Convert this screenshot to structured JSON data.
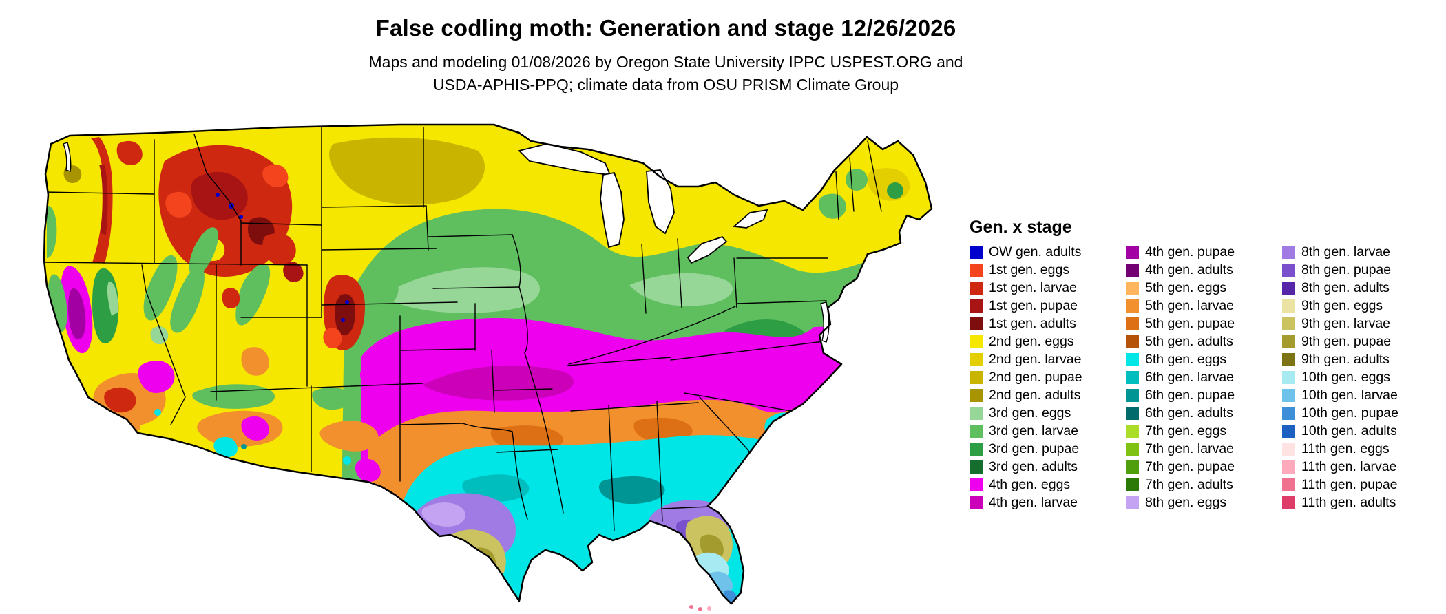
{
  "header": {
    "title": "False codling moth: Generation and stage 12/26/2026",
    "subtitle_line1": "Maps and modeling 01/08/2026 by Oregon State University IPPC USPEST.ORG and",
    "subtitle_line2": "USDA-APHIS-PPQ; climate data from OSU PRISM Climate Group"
  },
  "map": {
    "description": "Continental United States map colored by false codling moth generation and life stage",
    "outline_color": "#000000",
    "lake_color": "#FFFFFF"
  },
  "legend": {
    "title": "Gen. x stage",
    "columns": [
      [
        {
          "label": "OW gen. adults",
          "color": "#0000CD"
        },
        {
          "label": "1st gen. eggs",
          "color": "#F3441E"
        },
        {
          "label": "1st gen. larvae",
          "color": "#CF2810"
        },
        {
          "label": "1st gen. pupae",
          "color": "#A81414"
        },
        {
          "label": "1st gen. adults",
          "color": "#7E0E0E"
        },
        {
          "label": "2nd gen. eggs",
          "color": "#F5E700"
        },
        {
          "label": "2nd gen. larvae",
          "color": "#E3CF00"
        },
        {
          "label": "2nd gen. pupae",
          "color": "#C9B400"
        },
        {
          "label": "2nd gen. adults",
          "color": "#A89400"
        },
        {
          "label": "3rd gen. eggs",
          "color": "#96D696"
        },
        {
          "label": "3rd gen. larvae",
          "color": "#5FBF5F"
        },
        {
          "label": "3rd gen. pupae",
          "color": "#2E9E44"
        },
        {
          "label": "3rd gen. adults",
          "color": "#156E2E"
        },
        {
          "label": "4th gen. eggs",
          "color": "#EE00EE"
        },
        {
          "label": "4th gen. larvae",
          "color": "#CC00B8"
        }
      ],
      [
        {
          "label": "4th gen. pupae",
          "color": "#A300A3"
        },
        {
          "label": "4th gen. adults",
          "color": "#730073"
        },
        {
          "label": "5th gen. eggs",
          "color": "#FFB45E"
        },
        {
          "label": "5th gen. larvae",
          "color": "#F3902E"
        },
        {
          "label": "5th gen. pupae",
          "color": "#DD7014"
        },
        {
          "label": "5th gen. adults",
          "color": "#B55409"
        },
        {
          "label": "6th gen. eggs",
          "color": "#00E5E5"
        },
        {
          "label": "6th gen. larvae",
          "color": "#00BEBE"
        },
        {
          "label": "6th gen. pupae",
          "color": "#009595"
        },
        {
          "label": "6th gen. adults",
          "color": "#006B6B"
        },
        {
          "label": "7th gen. eggs",
          "color": "#AADC28"
        },
        {
          "label": "7th gen. larvae",
          "color": "#7FC213"
        },
        {
          "label": "7th gen. pupae",
          "color": "#4F9E0C"
        },
        {
          "label": "7th gen. adults",
          "color": "#2B7A08"
        },
        {
          "label": "8th gen. eggs",
          "color": "#C3A3F2"
        }
      ],
      [
        {
          "label": "8th gen. larvae",
          "color": "#9F7BE3"
        },
        {
          "label": "8th gen. pupae",
          "color": "#7B50CC"
        },
        {
          "label": "8th gen. adults",
          "color": "#5526A8"
        },
        {
          "label": "9th gen. eggs",
          "color": "#EAE3A4"
        },
        {
          "label": "9th gen. larvae",
          "color": "#CBC260"
        },
        {
          "label": "9th gen. pupae",
          "color": "#A49B2E"
        },
        {
          "label": "9th gen. adults",
          "color": "#7C7414"
        },
        {
          "label": "10th gen. eggs",
          "color": "#A8EAF2"
        },
        {
          "label": "10th gen. larvae",
          "color": "#6FC2EA"
        },
        {
          "label": "10th gen. pupae",
          "color": "#3D90D8"
        },
        {
          "label": "10th gen. adults",
          "color": "#1C60C0"
        },
        {
          "label": "11th gen. eggs",
          "color": "#FFE2E2"
        },
        {
          "label": "11th gen. larvae",
          "color": "#FFA9BC"
        },
        {
          "label": "11th gen. pupae",
          "color": "#F0718F"
        },
        {
          "label": "11th gen. adults",
          "color": "#DE3D69"
        }
      ]
    ]
  }
}
